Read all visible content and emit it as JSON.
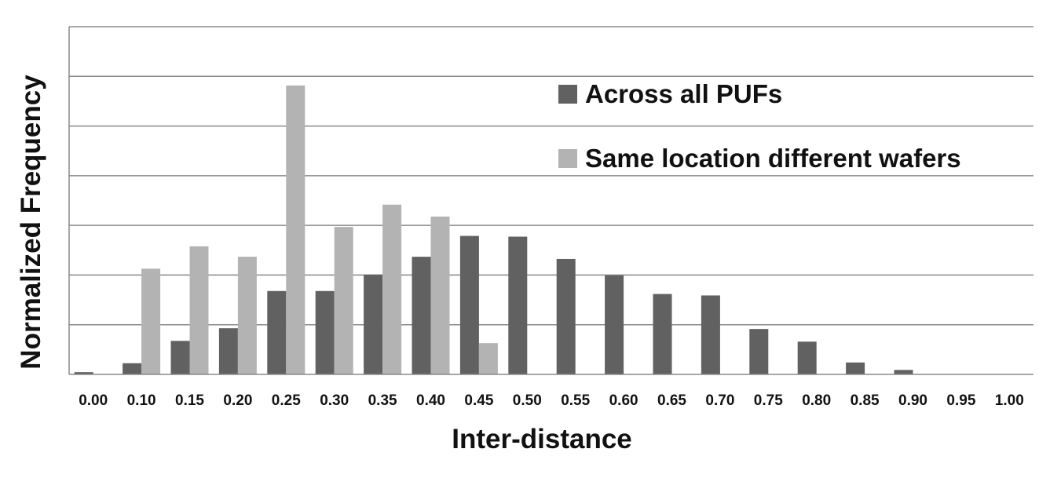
{
  "chart_data": {
    "type": "bar",
    "xlabel": "Inter-distance",
    "ylabel": "Normalized Frequency",
    "categories": [
      "0.00",
      "0.10",
      "0.15",
      "0.20",
      "0.25",
      "0.30",
      "0.35",
      "0.40",
      "0.45",
      "0.50",
      "0.55",
      "0.60",
      "0.65",
      "0.70",
      "0.75",
      "0.80",
      "0.85",
      "0.90",
      "0.95",
      "1.00"
    ],
    "series": [
      {
        "name": "Across all PUFs",
        "color": "#616161",
        "values": [
          0.03,
          0.15,
          0.45,
          0.62,
          1.12,
          1.12,
          1.34,
          1.58,
          1.86,
          1.85,
          1.55,
          1.33,
          1.08,
          1.06,
          0.61,
          0.44,
          0.16,
          0.06,
          0,
          0
        ]
      },
      {
        "name": "Same location different wafers",
        "color": "#b3b3b3",
        "values": [
          0,
          1.42,
          1.72,
          1.58,
          3.88,
          1.98,
          2.28,
          2.12,
          0.42,
          0,
          0,
          0,
          0,
          0,
          0,
          0,
          0,
          0,
          0,
          0
        ]
      }
    ],
    "ylim": [
      0,
      4.67
    ],
    "y_gridlines": 7,
    "y_tick_labels_shown": false,
    "grid": true,
    "legend_position": "top-right"
  }
}
